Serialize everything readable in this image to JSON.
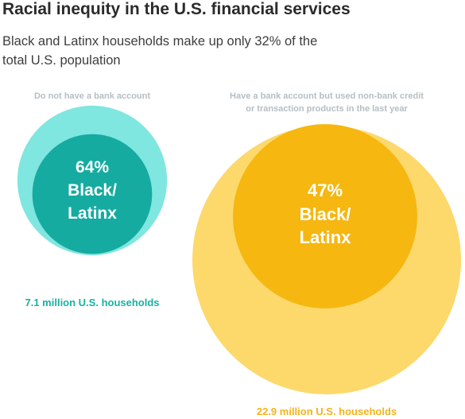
{
  "header": {
    "title": "Racial inequity in the U.S. financial services",
    "subtitle": "Black and Latinx households make up only 32% of the total U.S. population"
  },
  "colors": {
    "teal_outer": "#7fe6e0",
    "teal_inner": "#15aba1",
    "teal_text": "#19b0a5",
    "gold_outer": "#fdd86b",
    "gold_inner": "#f5b710",
    "gold_text": "#f4b41a",
    "caption_gray": "#b5bec4"
  },
  "chart_data": [
    {
      "type": "nested-circle",
      "caption": [
        "Do not have a bank account"
      ],
      "total_label": "7.1 million U.S. households",
      "total_value": 7.1,
      "total_unit": "million U.S. households",
      "share_percent": 64,
      "center_lines": [
        "64%",
        "Black/",
        "Latinx"
      ],
      "group": "Black/Latinx"
    },
    {
      "type": "nested-circle",
      "caption": [
        "Have a bank account but used non-bank credit",
        "or transaction products in the last year"
      ],
      "total_label": "22.9 million U.S. households",
      "total_value": 22.9,
      "total_unit": "million U.S. households",
      "share_percent": 47,
      "center_lines": [
        "47%",
        "Black/",
        "Latinx"
      ],
      "group": "Black/Latinx"
    }
  ]
}
